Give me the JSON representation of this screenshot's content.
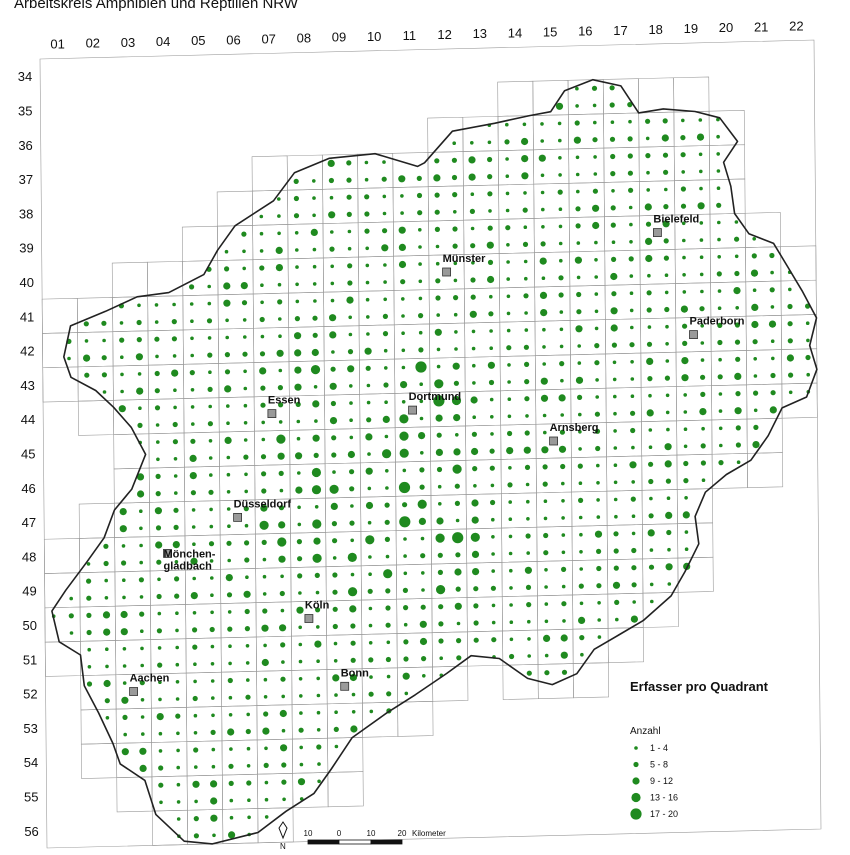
{
  "title": "Arbeitskreis Amphibien und Reptilien NRW",
  "grid": {
    "columns": [
      "01",
      "02",
      "03",
      "04",
      "05",
      "06",
      "07",
      "08",
      "09",
      "10",
      "11",
      "12",
      "13",
      "14",
      "15",
      "16",
      "17",
      "18",
      "19",
      "20",
      "21",
      "22"
    ],
    "rows": [
      "34",
      "35",
      "36",
      "37",
      "38",
      "39",
      "40",
      "41",
      "42",
      "43",
      "44",
      "45",
      "46",
      "47",
      "48",
      "49",
      "50",
      "51",
      "52",
      "53",
      "54",
      "55",
      "56"
    ]
  },
  "cities": [
    {
      "name": "Münster",
      "col": 12,
      "row": 40
    },
    {
      "name": "Bielefeld",
      "col": 18,
      "row": 39
    },
    {
      "name": "Paderborn",
      "col": 19,
      "row": 42
    },
    {
      "name": "Essen",
      "col": 7,
      "row": 44
    },
    {
      "name": "Dortmund",
      "col": 11,
      "row": 44
    },
    {
      "name": "Arnsberg",
      "col": 15,
      "row": 45
    },
    {
      "name": "Düsseldorf",
      "col": 6,
      "row": 47
    },
    {
      "name": "Mönchen-\ngladbach",
      "col": 4,
      "row": 48
    },
    {
      "name": "Köln",
      "col": 8,
      "row": 50
    },
    {
      "name": "Aachen",
      "col": 3,
      "row": 52
    },
    {
      "name": "Bonn",
      "col": 9,
      "row": 52
    }
  ],
  "legend": {
    "title": "Erfasser pro Quadrant",
    "subtitle": "Anzahl",
    "classes": [
      "1 - 4",
      "5 - 8",
      "9 - 12",
      "13 - 16",
      "17 - 20"
    ],
    "color": "#1f8a1f"
  },
  "scale_bar": {
    "ticks": [
      "10",
      "0",
      "10",
      "20"
    ],
    "unit": "Kilometer"
  },
  "north_arrow": "N",
  "colors": {
    "dot": "#1f8a1f",
    "city_marker": "#9a9a9a",
    "outline": "#222222",
    "grid": "#9a9a9a"
  }
}
